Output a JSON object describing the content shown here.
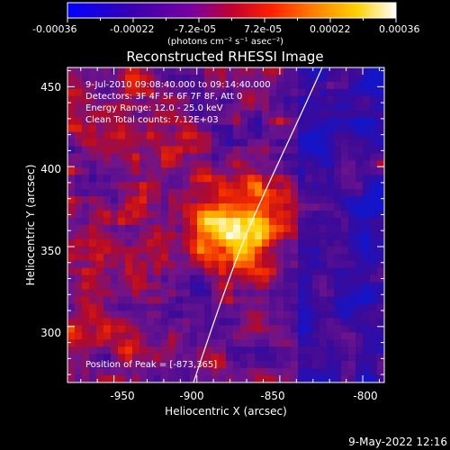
{
  "colorbar": {
    "ticks": [
      "-0.00036",
      "-0.00022",
      "-7.2e-05",
      "7.2e-05",
      "0.00022",
      "0.00036"
    ],
    "units": "(photons cm⁻² s⁻¹ asec⁻²)"
  },
  "plot": {
    "title": "Reconstructed RHESSI Image",
    "xlabel": "Heliocentric X (arcsec)",
    "ylabel": "Heliocentric Y (arcsec)",
    "xticks": [
      "-950",
      "-900",
      "-850",
      "-800"
    ],
    "yticks": [
      "450",
      "400",
      "350",
      "300"
    ]
  },
  "annotations": {
    "time": "9-Jul-2010 09:08:40.000 to 09:14:40.000",
    "detectors": "Detectors: 3F 4F 5F 6F 7F 8F, Att 0",
    "energy": "Energy Range: 12.0 - 25.0 keV",
    "clean": "Clean     Total counts: 7.12E+03",
    "peak": "Position of Peak = [-873,365]"
  },
  "footer": {
    "date": "9-May-2022 12:16"
  },
  "image": {
    "peak_x": -873,
    "peak_y": 365,
    "x_range": [
      -978,
      -787
    ],
    "y_range": [
      265,
      462
    ]
  }
}
